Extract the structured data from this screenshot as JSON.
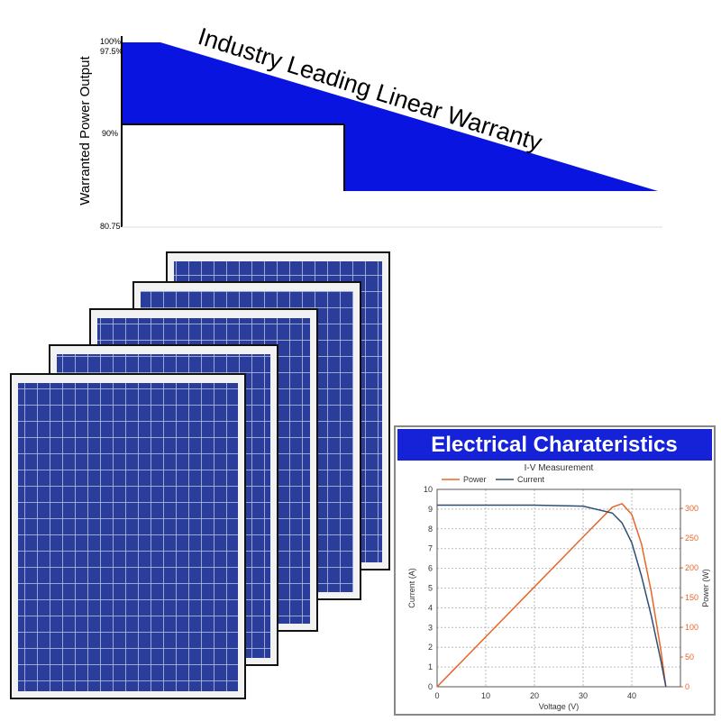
{
  "warranty": {
    "title": "Industry Leading Linear Warranty",
    "axis_label": "Warranted Power Output",
    "labels": [
      "100%",
      "97.5%",
      "90%",
      "80.75"
    ]
  },
  "chart_data": {
    "type": "line",
    "header": "Electrical Charateristics",
    "title": "I-V Measurement",
    "xlabel": "Voltage (V)",
    "ylabel": "Current (A)",
    "y2label": "Power (W)",
    "x": [
      0,
      10,
      20,
      30,
      36,
      38,
      40,
      42,
      44,
      46,
      47
    ],
    "series": [
      {
        "name": "Power",
        "color": "#e8652a",
        "axis": "y2",
        "values": [
          0,
          84,
          168,
          252,
          302,
          308,
          290,
          240,
          160,
          60,
          0
        ]
      },
      {
        "name": "Current",
        "color": "#2e4f74",
        "values": [
          9.2,
          9.2,
          9.2,
          9.15,
          8.8,
          8.3,
          7.3,
          5.6,
          3.6,
          1.3,
          0
        ]
      }
    ],
    "xlim": [
      0,
      50
    ],
    "xticks": [
      0,
      10,
      20,
      30,
      40
    ],
    "ylim": [
      0,
      10
    ],
    "yticks": [
      0,
      1,
      2,
      3,
      4,
      5,
      6,
      7,
      8,
      9,
      10
    ],
    "y2lim": [
      0,
      332
    ],
    "y2ticks": [
      0,
      50,
      100,
      150,
      200,
      250,
      300
    ],
    "grid": true
  }
}
